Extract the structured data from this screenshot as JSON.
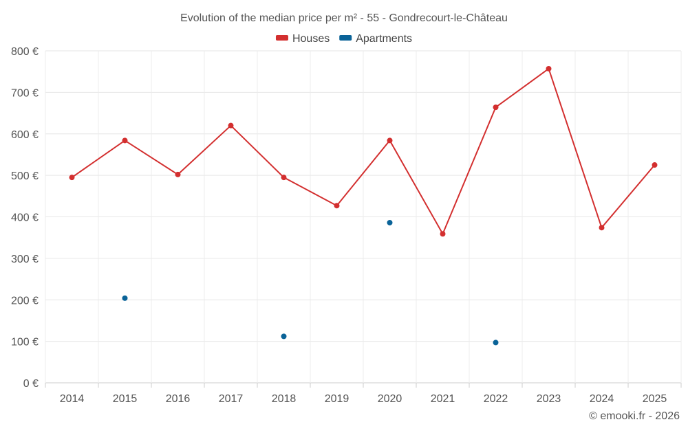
{
  "chart_data": {
    "type": "line",
    "title": "Evolution of the median price per m² - 55 - Gondrecourt-le-Château",
    "categories": [
      "2014",
      "2015",
      "2016",
      "2017",
      "2018",
      "2019",
      "2020",
      "2021",
      "2022",
      "2023",
      "2024",
      "2025"
    ],
    "series": [
      {
        "name": "Houses",
        "color": "#d32f2f",
        "style": "line-with-markers",
        "values": [
          495,
          584,
          502,
          620,
          495,
          427,
          584,
          359,
          664,
          757,
          374,
          525
        ]
      },
      {
        "name": "Apartments",
        "color": "#0a6398",
        "style": "markers-only",
        "values": [
          null,
          204,
          null,
          null,
          112,
          null,
          386,
          null,
          97,
          null,
          null,
          null
        ]
      }
    ],
    "y_ticks": [
      0,
      100,
      200,
      300,
      400,
      500,
      600,
      700,
      800
    ],
    "y_tick_suffix": " €",
    "ylim": [
      0,
      800
    ],
    "grid": true,
    "legend_position": "top-center",
    "xlabel": "",
    "ylabel": ""
  },
  "credit": "© emooki.fr - 2026"
}
